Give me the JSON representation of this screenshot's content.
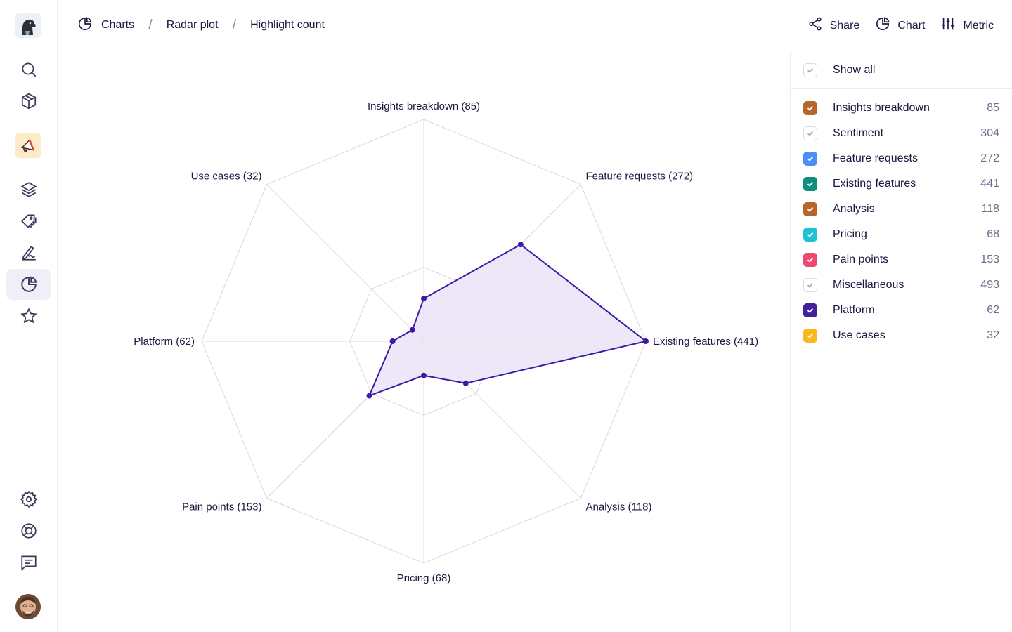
{
  "breadcrumb": {
    "items": [
      "Charts",
      "Radar plot",
      "Highlight count"
    ],
    "separator": "/"
  },
  "toolbar": {
    "share_label": "Share",
    "chart_label": "Chart",
    "metric_label": "Metric"
  },
  "sidebar": {
    "icons": [
      "logo",
      "search-icon",
      "cube-icon",
      "megaphone-icon",
      "layers-icon",
      "tags-icon",
      "signature-icon",
      "pie-chart-icon",
      "star-icon",
      "settings-icon",
      "lifebuoy-icon",
      "message-icon",
      "avatar"
    ],
    "active": "pie-chart-icon"
  },
  "legend": {
    "show_all_label": "Show all",
    "items": [
      {
        "name": "Insights breakdown",
        "count": "85",
        "color": "#b8652b",
        "checked": true
      },
      {
        "name": "Sentiment",
        "count": "304",
        "color": "#ffffff",
        "checked": false
      },
      {
        "name": "Feature requests",
        "count": "272",
        "color": "#4c8df6",
        "checked": true
      },
      {
        "name": "Existing features",
        "count": "441",
        "color": "#0e8f7e",
        "checked": true
      },
      {
        "name": "Analysis",
        "count": "118",
        "color": "#b8652b",
        "checked": true
      },
      {
        "name": "Pricing",
        "count": "68",
        "color": "#20c1d4",
        "checked": true
      },
      {
        "name": "Pain points",
        "count": "153",
        "color": "#f0476f",
        "checked": true
      },
      {
        "name": "Miscellaneous",
        "count": "493",
        "color": "#ffffff",
        "checked": false
      },
      {
        "name": "Platform",
        "count": "62",
        "color": "#43219c",
        "checked": true
      },
      {
        "name": "Use cases",
        "count": "32",
        "color": "#fbb81b",
        "checked": true
      }
    ]
  },
  "chart_data": {
    "type": "radar",
    "categories": [
      "Insights breakdown",
      "Feature requests",
      "Existing features",
      "Analysis",
      "Pricing",
      "Pain points",
      "Platform",
      "Use cases"
    ],
    "labels": [
      "Insights breakdown (85)",
      "Feature requests (272)",
      "Existing features (441)",
      "Analysis (118)",
      "Pricing (68)",
      "Pain points (153)",
      "Platform (62)",
      "Use cases (32)"
    ],
    "values": [
      85,
      272,
      441,
      118,
      68,
      153,
      62,
      32
    ],
    "rmax": 441,
    "rings": 3,
    "colors": {
      "line": "#3f1aa6",
      "fill": "#e9e4f6",
      "grid": "#d9d9de"
    }
  }
}
